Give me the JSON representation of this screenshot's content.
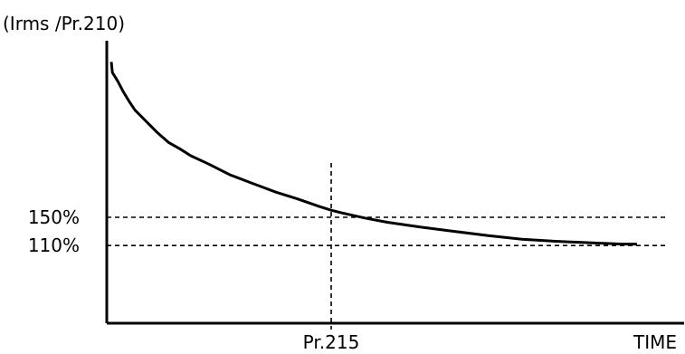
{
  "chart_data": {
    "type": "line",
    "ylabel": "(Irms /Pr.210)",
    "xlabel": "TIME",
    "reference_lines": [
      {
        "label": "150%",
        "axis": "y",
        "value": 150,
        "style": "dashed"
      },
      {
        "label": "110%",
        "axis": "y",
        "value": 110,
        "style": "dashed"
      },
      {
        "label": "Pr.215",
        "axis": "x",
        "value": 40,
        "style": "dashed"
      }
    ],
    "xlim": [
      0,
      100
    ],
    "ylim": [
      0,
      400
    ],
    "series": [
      {
        "x": [
          0.8,
          1,
          2,
          3,
          4,
          5,
          7,
          9,
          11,
          13,
          15,
          18,
          22,
          26,
          30,
          34,
          38,
          40,
          42,
          46,
          50,
          56,
          62,
          68,
          74,
          80,
          86,
          92,
          94.5
        ],
        "y": [
          370,
          355,
          342,
          327,
          314,
          302,
          286,
          270,
          256,
          247,
          237,
          226,
          210,
          198,
          186,
          176,
          165,
          160,
          156,
          149,
          143,
          136,
          130,
          124,
          119,
          116,
          114,
          112,
          112
        ]
      }
    ],
    "grid": false,
    "legend": "none"
  }
}
